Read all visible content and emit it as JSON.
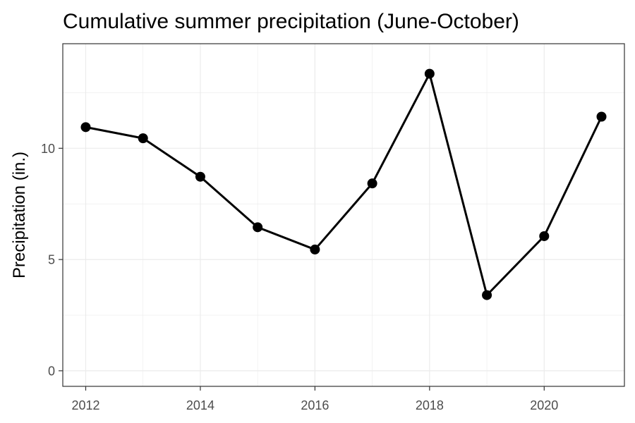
{
  "chart_data": {
    "type": "line",
    "title": "Cumulative summer precipitation (June-October)",
    "xlabel": "",
    "ylabel": "Precipitation (in.)",
    "x": [
      2012,
      2013,
      2014,
      2015,
      2016,
      2017,
      2018,
      2019,
      2020,
      2021
    ],
    "series": [
      {
        "values": [
          10.95,
          10.45,
          8.72,
          6.45,
          5.45,
          8.42,
          13.35,
          3.4,
          6.05,
          11.42
        ]
      }
    ],
    "xlim": [
      2011.6,
      2021.4
    ],
    "ylim": [
      -0.7,
      14.7
    ],
    "xticks": [
      2012,
      2014,
      2016,
      2018,
      2020
    ],
    "xtick_labels": [
      "2012",
      "2014",
      "2016",
      "2018",
      "2020"
    ],
    "yticks": [
      0,
      5,
      10
    ],
    "ytick_labels": [
      "0",
      "5",
      "10"
    ],
    "grid": true,
    "legend": "none",
    "colors": {
      "line": "#000000",
      "point": "#000000",
      "grid": "#ebebeb",
      "panel_border": "#333333"
    }
  }
}
